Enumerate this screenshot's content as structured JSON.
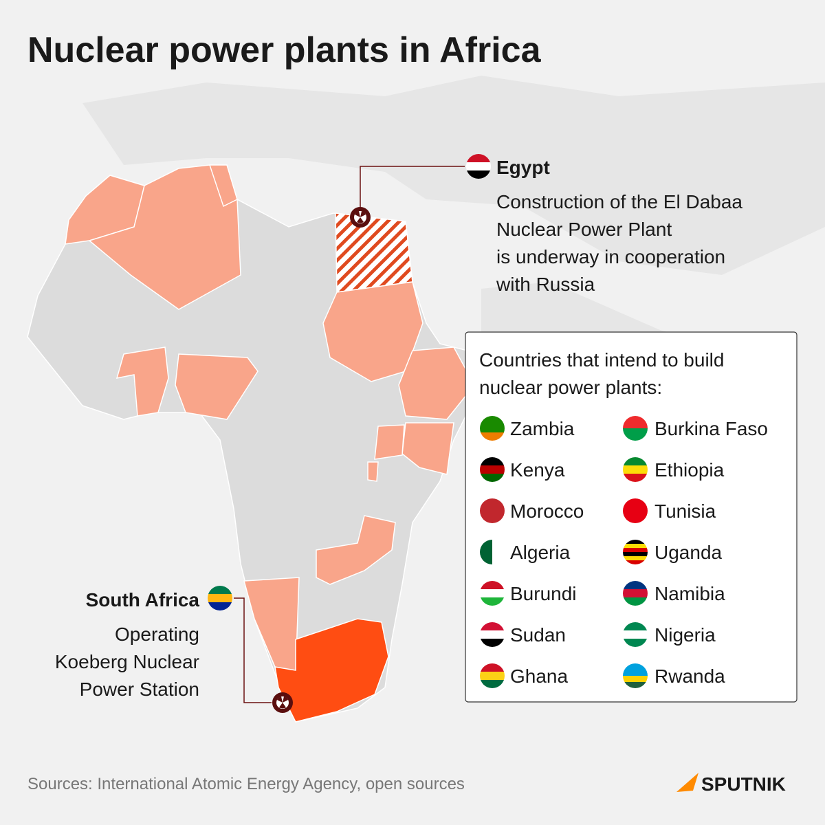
{
  "title": "Nuclear power plants in Africa",
  "egypt": {
    "name": "Egypt",
    "description": [
      "Construction of the El Dabaa",
      "Nuclear Power Plant",
      "is underway in cooperation",
      "with Russia"
    ]
  },
  "south_africa": {
    "name": "South Africa",
    "description": [
      "Operating",
      "Koeberg Nuclear",
      "Power Station"
    ]
  },
  "legend": {
    "title": [
      "Countries that intend to build",
      "nuclear power plants:"
    ],
    "columns": [
      [
        "Zambia",
        "Kenya",
        "Morocco",
        "Algeria",
        "Burundi",
        "Sudan",
        "Ghana"
      ],
      [
        "Burkina Faso",
        "Ethiopia",
        "Tunisia",
        "Uganda",
        "Namibia",
        "Nigeria",
        "Rwanda"
      ]
    ]
  },
  "sources": "Sources: International Atomic Energy Agency, open sources",
  "logo": "SPUTNIK"
}
